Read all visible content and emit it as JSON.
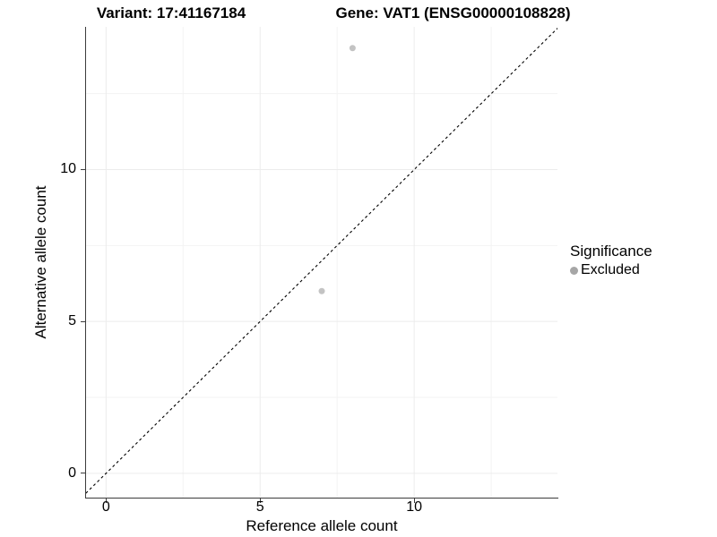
{
  "chart_data": {
    "type": "scatter",
    "titles": [
      "Variant: 17:41167184",
      "Gene: VAT1 (ENSG00000108828)"
    ],
    "xlabel": "Reference allele count",
    "ylabel": "Alternative allele count",
    "xlim": [
      -0.65,
      14.65
    ],
    "ylim": [
      -0.8,
      14.7
    ],
    "x_ticks": [
      0,
      5,
      10
    ],
    "y_ticks": [
      0,
      5,
      10
    ],
    "x_minor_ticks": [
      2.5,
      7.5,
      12.5
    ],
    "y_minor_ticks": [
      2.5,
      7.5,
      12.5
    ],
    "grid": "on",
    "series": [
      {
        "name": "Excluded",
        "points": [
          {
            "x": 7,
            "y": 6
          },
          {
            "x": 8,
            "y": 14
          }
        ]
      }
    ],
    "abline": {
      "slope": 1,
      "intercept": 0,
      "style": "dashed"
    },
    "legend": {
      "position": "right",
      "title": "Significance",
      "items": [
        {
          "label": "Excluded",
          "color": "#a6a6a6"
        }
      ]
    },
    "style": {
      "point_color": "#c3c3c3",
      "abline_color": "#000000",
      "grid_major_color": "#ececec",
      "grid_minor_color": "#f3f3f3",
      "axis_color": "#3c3c3c",
      "text_color": "#000000",
      "background": "#ffffff"
    }
  }
}
